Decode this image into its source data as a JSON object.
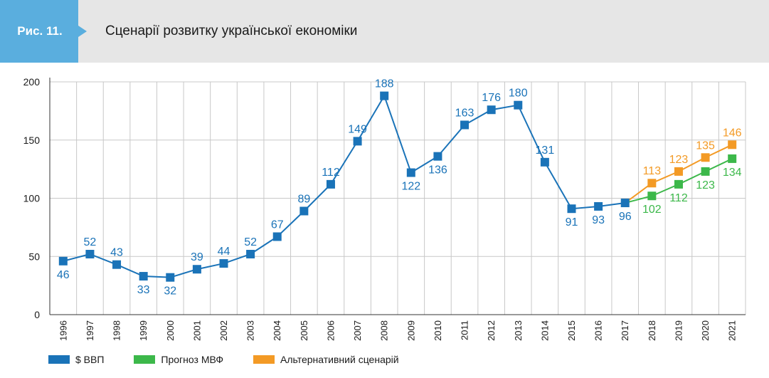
{
  "header": {
    "fig_label": "Рис. 11.",
    "title": "Сценарії розвитку української економіки"
  },
  "colors": {
    "accent": "#5aaede",
    "gdp": "#1a73b8",
    "imf": "#3cb84a",
    "alt": "#f39a25",
    "grid": "#c8c8c8",
    "axis": "#333333"
  },
  "legend": [
    {
      "label": "$ ВВП",
      "color": "#1a73b8"
    },
    {
      "label": "Прогноз МВФ",
      "color": "#3cb84a"
    },
    {
      "label": "Альтернативний сценарій",
      "color": "#f39a25"
    }
  ],
  "chart_data": {
    "type": "line",
    "categories": [
      "1996",
      "1997",
      "1998",
      "1999",
      "2000",
      "2001",
      "2002",
      "2003",
      "2004",
      "2005",
      "2006",
      "2007",
      "2008",
      "2009",
      "2010",
      "2011",
      "2012",
      "2013",
      "2014",
      "2015",
      "2016",
      "2017",
      "2018",
      "2019",
      "2020",
      "2021"
    ],
    "ylim": [
      0,
      200
    ],
    "yticks": [
      0,
      50,
      100,
      150,
      200
    ],
    "grid": true,
    "legend_position": "bottom-left",
    "series": [
      {
        "name": "$ ВВП",
        "color": "#1a73b8",
        "x": [
          "1996",
          "1997",
          "1998",
          "1999",
          "2000",
          "2001",
          "2002",
          "2003",
          "2004",
          "2005",
          "2006",
          "2007",
          "2008",
          "2009",
          "2010",
          "2011",
          "2012",
          "2013",
          "2014",
          "2015",
          "2016",
          "2017"
        ],
        "values": [
          46,
          52,
          43,
          33,
          32,
          39,
          44,
          52,
          67,
          89,
          112,
          149,
          188,
          122,
          136,
          163,
          176,
          180,
          131,
          91,
          93,
          96
        ],
        "label_pos": [
          "below",
          "above",
          "above",
          "below",
          "below",
          "above",
          "above",
          "above",
          "above",
          "above",
          "above",
          "above",
          "above",
          "below",
          "below",
          "above",
          "above",
          "above",
          "above",
          "below",
          "below",
          "below"
        ]
      },
      {
        "name": "Прогноз МВФ",
        "color": "#3cb84a",
        "x": [
          "2017",
          "2018",
          "2019",
          "2020",
          "2021"
        ],
        "values": [
          96,
          102,
          112,
          123,
          134
        ],
        "label_pos": [
          "none",
          "below",
          "below",
          "below",
          "below"
        ]
      },
      {
        "name": "Альтернативний сценарій",
        "color": "#f39a25",
        "x": [
          "2017",
          "2018",
          "2019",
          "2020",
          "2021"
        ],
        "values": [
          96,
          113,
          123,
          135,
          146
        ],
        "label_pos": [
          "none",
          "above",
          "above",
          "above",
          "above"
        ]
      }
    ]
  }
}
